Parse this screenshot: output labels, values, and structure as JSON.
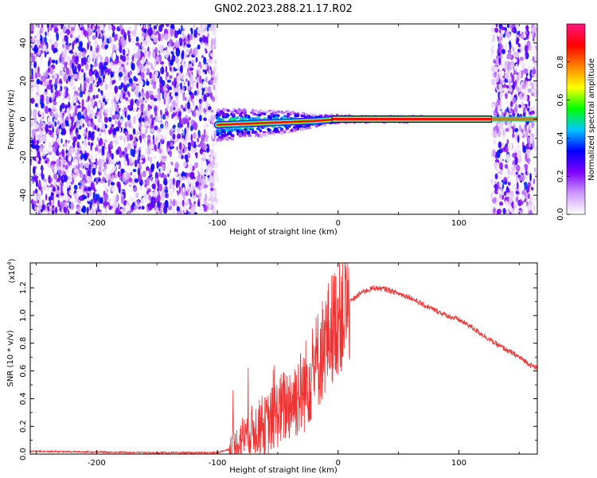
{
  "title": "GN02.2023.288.21.17.R02",
  "chart_data": [
    {
      "type": "heatmap",
      "xlabel": "Height of straight line (km)",
      "ylabel": "Frequency (Hz)",
      "xlim": [
        -255,
        165
      ],
      "ylim": [
        -50,
        50
      ],
      "xticks": [
        "-200",
        "-100",
        "0",
        "100"
      ],
      "xtick_values": [
        -200,
        -100,
        0,
        100
      ],
      "yticks": [
        "-40",
        "-20",
        "0",
        "20",
        "40"
      ],
      "ytick_values": [
        -40,
        -20,
        0,
        20,
        40
      ],
      "colorbar": {
        "label": "Normalized spectral amplitude",
        "range": [
          0,
          1
        ],
        "ticks": [
          "0.0",
          "0.2",
          "0.4",
          "0.6",
          "0.8"
        ],
        "tick_values": [
          0.0,
          0.2,
          0.4,
          0.6,
          0.8
        ],
        "colors": [
          "#ffffff",
          "#cc99ff",
          "#7f00ff",
          "#0000ff",
          "#00c8ff",
          "#00ff00",
          "#ffff00",
          "#ff8000",
          "#ff0000",
          "#ff1480"
        ]
      },
      "regions": [
        {
          "x_start": -255,
          "x_end": -100,
          "pattern": "noise",
          "level": 0.25
        },
        {
          "x_start": -100,
          "x_end": 127,
          "pattern": "carrier",
          "level": 1.0
        },
        {
          "x_start": 127,
          "x_end": 165,
          "pattern": "noise",
          "level": 0.3
        }
      ],
      "carrier": {
        "x": [
          -100,
          -80,
          -60,
          -40,
          -20,
          0,
          20,
          40,
          60,
          80,
          100,
          127
        ],
        "freq": [
          -3,
          -2.5,
          -2,
          -1.5,
          -1,
          0,
          0,
          0,
          0,
          0,
          0,
          0
        ],
        "halfwidth": [
          8,
          7,
          6,
          5,
          3,
          2,
          1.5,
          1.5,
          1.5,
          1.5,
          1.5,
          1.5
        ]
      }
    },
    {
      "type": "line",
      "xlabel": "Height of straight line (km)",
      "ylabel": "SNR (10 * v/v)",
      "yscale_label": "(x10",
      "yscale_exponent": "4",
      "yscale_suffix": ")",
      "xlim": [
        -255,
        165
      ],
      "ylim": [
        0,
        1.38
      ],
      "xticks": [
        "-200",
        "-100",
        "0",
        "100"
      ],
      "xtick_values": [
        -200,
        -100,
        0,
        100
      ],
      "yticks": [
        "0.0",
        "0.2",
        "0.4",
        "0.6",
        "0.8",
        "1.0",
        "1.2"
      ],
      "ytick_values": [
        0.0,
        0.2,
        0.4,
        0.6,
        0.8,
        1.0,
        1.2
      ],
      "color": "#ee3333",
      "x": [
        -255,
        -200,
        -150,
        -100,
        -85,
        -80,
        -70,
        -60,
        -50,
        -40,
        -30,
        -20,
        -10,
        0,
        10,
        20,
        30,
        40,
        50,
        60,
        70,
        80,
        90,
        100,
        110,
        120,
        130,
        140,
        150,
        160,
        165
      ],
      "y": [
        0.02,
        0.015,
        0.01,
        0.01,
        0.05,
        0.12,
        0.18,
        0.2,
        0.3,
        0.38,
        0.45,
        0.62,
        0.82,
        1.0,
        1.1,
        1.17,
        1.2,
        1.19,
        1.16,
        1.13,
        1.08,
        1.04,
        1.0,
        0.97,
        0.92,
        0.86,
        0.8,
        0.75,
        0.7,
        0.64,
        0.62
      ]
    }
  ]
}
